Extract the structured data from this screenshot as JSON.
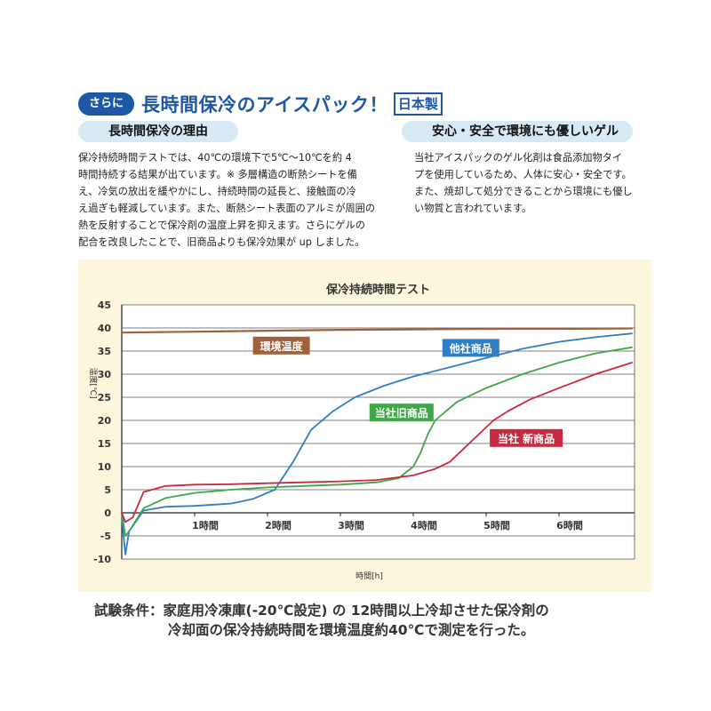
{
  "header": {
    "badge": "さらに",
    "title": "長時間保冷のアイスパック！",
    "made_in": "日本製",
    "accent_color": "#1e57a6"
  },
  "sections": [
    {
      "heading": "長時間保冷の理由",
      "lines": [
        "保冷持続時間テストでは、40℃の環境下で5℃～10℃を約 4",
        "時間持続する結果が出ています。※ 多層構造の断熱シートを備",
        "え、冷気の放出を緩やかにし、持続時間の延長と、接触面の冷",
        "え過ぎも軽減しています。また、断熱シート表面のアルミが周囲の",
        "熱を反射することで保冷剤の温度上昇を抑えます。さらにゲルの",
        "配合を改良したことで、旧商品よりも保冷効果が up しました。"
      ]
    },
    {
      "heading": "安心・安全で環境にも優しいゲル",
      "lines": [
        "当社アイスパックのゲル化剤は食品添加物タイ",
        "プを使用しているため、人体に安心・安全です。",
        "また、焼却して処分できることから環境にも優し",
        "い物質と言われています。"
      ]
    }
  ],
  "chart_data": {
    "type": "line",
    "title": "保冷持続時間テスト",
    "xlabel": "時間[h]",
    "ylabel": "温度[℃]",
    "xlim": [
      0,
      7
    ],
    "ylim": [
      -10,
      45
    ],
    "yticks": [
      -10,
      -5,
      0,
      5,
      10,
      15,
      20,
      25,
      30,
      35,
      40,
      45
    ],
    "xticks": [
      1,
      2,
      3,
      4,
      5,
      6
    ],
    "xtick_labels": [
      "1時間",
      "2時間",
      "3時間",
      "4時間",
      "5時間",
      "6時間"
    ],
    "grid": true,
    "series": [
      {
        "name": "環境温度",
        "color": "#a0603a",
        "x": [
          0,
          1,
          2,
          3,
          4,
          5,
          6,
          7
        ],
        "y": [
          39,
          39.2,
          39.4,
          39.6,
          39.7,
          39.8,
          39.8,
          39.9
        ]
      },
      {
        "name": "他社商品",
        "color": "#2f7fc8",
        "x": [
          0,
          0.05,
          0.1,
          0.3,
          0.6,
          1,
          1.5,
          1.8,
          2.1,
          2.35,
          2.6,
          2.9,
          3.2,
          3.6,
          4,
          4.5,
          5,
          5.5,
          6,
          6.5,
          7
        ],
        "y": [
          -1,
          -9,
          -4,
          0.5,
          1.3,
          1.5,
          2,
          3,
          5,
          11,
          18,
          22,
          25,
          27.5,
          29.5,
          31.5,
          33.5,
          35.5,
          37,
          38,
          38.8
        ]
      },
      {
        "name": "当社旧商品",
        "color": "#3ea748",
        "x": [
          0,
          0.05,
          0.1,
          0.3,
          0.6,
          1,
          1.5,
          2,
          2.5,
          3,
          3.5,
          3.8,
          4,
          4.1,
          4.2,
          4.3,
          4.45,
          4.6,
          5,
          5.5,
          6,
          6.5,
          7
        ],
        "y": [
          0,
          -5,
          -4,
          1,
          3.2,
          4.3,
          5,
          5.5,
          5.8,
          6.1,
          6.6,
          7.5,
          10,
          13,
          17,
          20,
          22,
          24,
          27,
          30,
          32.5,
          34.5,
          35.8
        ]
      },
      {
        "name": "当社 新商品",
        "color": "#c8293f",
        "x": [
          0,
          0.05,
          0.15,
          0.3,
          0.6,
          1,
          1.5,
          2,
          2.5,
          3,
          3.5,
          4,
          4.3,
          4.5,
          4.7,
          4.9,
          5.1,
          5.3,
          5.6,
          6,
          6.5,
          7
        ],
        "y": [
          0,
          -2,
          -1,
          4.5,
          5.8,
          6.1,
          6.2,
          6.4,
          6.6,
          6.8,
          7.1,
          8.1,
          9.5,
          11,
          14,
          17,
          20,
          22,
          24.5,
          27,
          30,
          32.5
        ]
      }
    ]
  },
  "condition": {
    "line1": "試験条件：家庭用冷凍庫(-20℃設定) の 12時間以上冷却させた保冷剤の",
    "line2": "冷却面の保冷持続時間を環境温度約40℃で測定を行った。"
  }
}
